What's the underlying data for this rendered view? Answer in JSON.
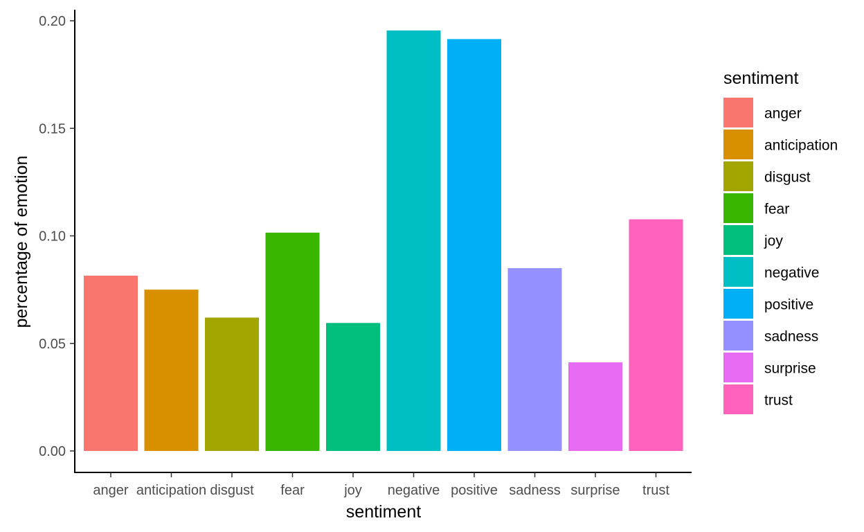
{
  "chart_data": {
    "type": "bar",
    "title": "",
    "xlabel": "sentiment",
    "ylabel": "percentage of emotion",
    "ylim": [
      0,
      0.2
    ],
    "yticks": [
      "0.00",
      "0.05",
      "0.10",
      "0.15",
      "0.20"
    ],
    "categories": [
      "anger",
      "anticipation",
      "disgust",
      "fear",
      "joy",
      "negative",
      "positive",
      "sadness",
      "surprise",
      "trust"
    ],
    "values": [
      0.0815,
      0.075,
      0.062,
      0.1015,
      0.0595,
      0.1955,
      0.1915,
      0.085,
      0.0412,
      0.1077
    ],
    "colors": [
      "#F8766D",
      "#D89000",
      "#A3A500",
      "#39B600",
      "#00BF7D",
      "#00BFC4",
      "#00B0F6",
      "#9590FF",
      "#E76BF3",
      "#FF62BC"
    ],
    "grid": false,
    "legend": {
      "title": "sentiment",
      "position": "right"
    }
  }
}
